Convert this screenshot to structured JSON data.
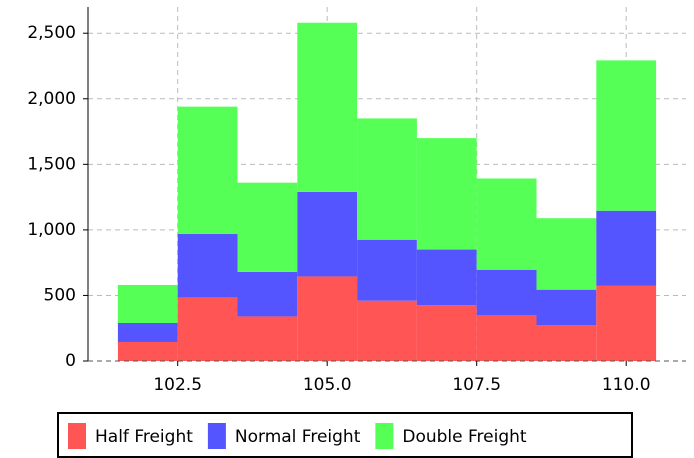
{
  "chart_data": {
    "type": "histogram",
    "bins": [
      101.5,
      102.5,
      103.5,
      104.5,
      105.5,
      106.5,
      107.5,
      108.5,
      109.5,
      110.5
    ],
    "stacked": true,
    "series": [
      {
        "name": "Half Freight",
        "color": "#ff5555",
        "values": [
          145,
          485,
          340,
          645,
          460,
          425,
          348,
          272,
          573
        ]
      },
      {
        "name": "Normal Freight",
        "color": "#5555ff",
        "values": [
          145,
          485,
          340,
          645,
          465,
          425,
          348,
          272,
          573
        ]
      },
      {
        "name": "Double Freight",
        "color": "#55ff55",
        "values": [
          290,
          970,
          680,
          1290,
          925,
          850,
          696,
          545,
          1147
        ]
      }
    ],
    "xlim": [
      101,
      111
    ],
    "xticks": [
      102.5,
      {
        "value": 105,
        "label": "105.0"
      },
      107.5,
      {
        "value": 110,
        "label": "110.0"
      }
    ],
    "ylim": [
      0,
      2700
    ],
    "yticks": [
      0,
      500,
      {
        "value": 1000,
        "label": "1,000"
      },
      {
        "value": 1500,
        "label": "1,500"
      },
      {
        "value": 2000,
        "label": "2,000"
      },
      {
        "value": 2500,
        "label": "2,500"
      }
    ],
    "grid": true,
    "legend": "bottom"
  }
}
